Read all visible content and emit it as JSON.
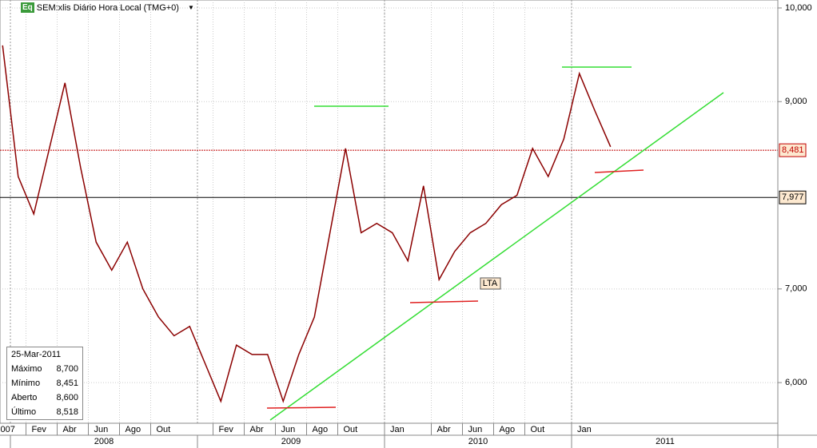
{
  "header": {
    "icon": "Eq",
    "title": "SEM:xlis Diário Hora Local (TMG+0)"
  },
  "chart_data": {
    "type": "line",
    "color": "#8b0000",
    "x": [
      "2007-12",
      "2008-01",
      "2008-02",
      "2008-03",
      "2008-04",
      "2008-05",
      "2008-06",
      "2008-07",
      "2008-08",
      "2008-09",
      "2008-10",
      "2008-11",
      "2008-12",
      "2009-01",
      "2009-02",
      "2009-03",
      "2009-04",
      "2009-05",
      "2009-06",
      "2009-07",
      "2009-08",
      "2009-09",
      "2009-10",
      "2009-11",
      "2009-12",
      "2010-01",
      "2010-02",
      "2010-03",
      "2010-04",
      "2010-05",
      "2010-06",
      "2010-07",
      "2010-08",
      "2010-09",
      "2010-10",
      "2010-11",
      "2010-12",
      "2011-01",
      "2011-02",
      "2011-03"
    ],
    "values": [
      9600,
      8200,
      7800,
      8500,
      9200,
      8300,
      7500,
      7200,
      7500,
      7000,
      6700,
      6500,
      6600,
      6200,
      5800,
      6400,
      6300,
      6300,
      5800,
      6300,
      6700,
      7600,
      8500,
      7600,
      7700,
      7600,
      7300,
      8100,
      7100,
      7400,
      7600,
      7700,
      7900,
      8000,
      8500,
      8200,
      8600,
      9300,
      8900,
      8518
    ],
    "ylim": [
      5566,
      10085
    ],
    "yticks": [
      {
        "value": 6000,
        "label": "6,000"
      },
      {
        "value": 7000,
        "label": "7,000"
      },
      {
        "value": 9000,
        "label": "9,000"
      },
      {
        "value": 10000,
        "label": "10,000"
      }
    ],
    "xticks": [
      {
        "value": "2007-12",
        "label": "007"
      },
      {
        "value": "2008-02",
        "label": "Fev"
      },
      {
        "value": "2008-04",
        "label": "Abr"
      },
      {
        "value": "2008-06",
        "label": "Jun"
      },
      {
        "value": "2008-08",
        "label": "Ago"
      },
      {
        "value": "2008-10",
        "label": "Out"
      },
      {
        "value": "2009-02",
        "label": "Fev"
      },
      {
        "value": "2009-04",
        "label": "Abr"
      },
      {
        "value": "2009-06",
        "label": "Jun"
      },
      {
        "value": "2009-08",
        "label": "Ago"
      },
      {
        "value": "2009-10",
        "label": "Out"
      },
      {
        "value": "2010-01",
        "label": "Jan"
      },
      {
        "value": "2010-04",
        "label": "Abr"
      },
      {
        "value": "2010-06",
        "label": "Jun"
      },
      {
        "value": "2010-08",
        "label": "Ago"
      },
      {
        "value": "2010-10",
        "label": "Out"
      },
      {
        "value": "2011-01",
        "label": "Jan"
      }
    ],
    "years": [
      2008,
      2009,
      2010,
      2011
    ],
    "price_lines": [
      {
        "value": 8481,
        "label": "8,481",
        "color": "#c00000"
      },
      {
        "value": 7977,
        "label": "7,977",
        "color": "#000000"
      }
    ],
    "grid": true,
    "annotations": [
      "LTA"
    ]
  },
  "info": {
    "date": "25-Mar-2011",
    "rows": [
      [
        "Máximo",
        "8,700"
      ],
      [
        "Mínimo",
        "8,451"
      ],
      [
        "Aberto",
        "8,600"
      ],
      [
        "Último",
        "8,518"
      ]
    ]
  }
}
